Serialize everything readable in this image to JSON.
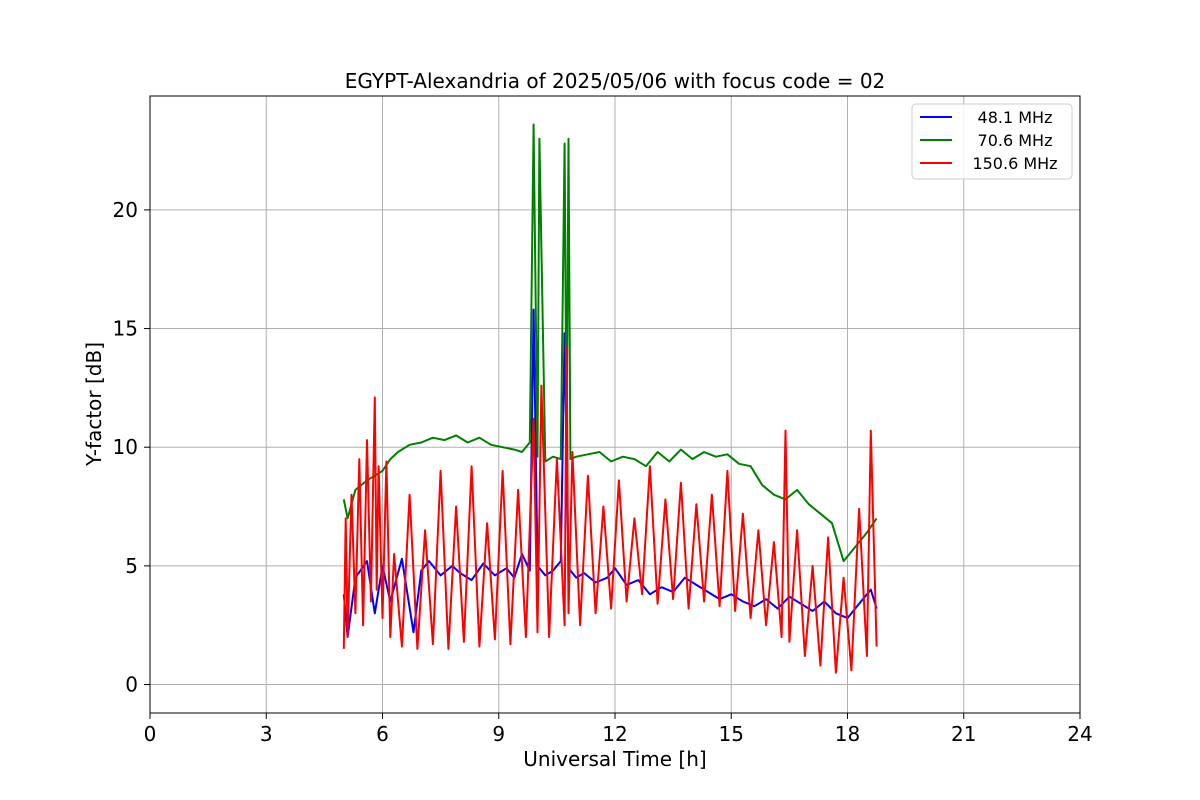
{
  "chart_data": {
    "type": "line",
    "title": "EGYPT-Alexandria of 2025/05/06 with focus code = 02",
    "xlabel": "Universal Time [h]",
    "ylabel": "Y-factor [dB]",
    "xlim": [
      0,
      24
    ],
    "ylim": [
      -1.2,
      24.8
    ],
    "xticks": [
      0,
      3,
      6,
      9,
      12,
      15,
      18,
      21,
      24
    ],
    "yticks": [
      0,
      5,
      10,
      15,
      20
    ],
    "grid": true,
    "legend_position": "top-right",
    "series": [
      {
        "name": "48.1 MHz",
        "color": "#0000ff",
        "x": [
          5.0,
          5.1,
          5.3,
          5.6,
          5.8,
          6.0,
          6.2,
          6.5,
          6.8,
          7.0,
          7.2,
          7.5,
          7.8,
          8.0,
          8.3,
          8.6,
          8.9,
          9.2,
          9.4,
          9.6,
          9.8,
          9.9,
          10.0,
          10.2,
          10.4,
          10.6,
          10.7,
          10.8,
          11.0,
          11.2,
          11.5,
          11.8,
          12.0,
          12.3,
          12.6,
          12.9,
          13.2,
          13.5,
          13.8,
          14.1,
          14.4,
          14.7,
          15.0,
          15.3,
          15.6,
          15.9,
          16.2,
          16.5,
          16.8,
          17.1,
          17.4,
          17.7,
          18.0,
          18.3,
          18.6,
          18.75
        ],
        "y": [
          3.8,
          2.0,
          4.5,
          5.2,
          3.0,
          5.0,
          3.5,
          5.3,
          2.2,
          4.8,
          5.2,
          4.6,
          5.0,
          4.7,
          4.4,
          5.1,
          4.6,
          4.9,
          4.5,
          5.5,
          4.8,
          15.8,
          5.0,
          4.6,
          4.8,
          5.2,
          14.8,
          4.9,
          4.5,
          4.7,
          4.3,
          4.5,
          4.9,
          4.2,
          4.4,
          3.8,
          4.1,
          3.9,
          4.5,
          4.2,
          3.9,
          3.6,
          3.8,
          3.5,
          3.3,
          3.6,
          3.2,
          3.7,
          3.4,
          3.1,
          3.5,
          3.0,
          2.8,
          3.4,
          4.0,
          3.2
        ]
      },
      {
        "name": "70.6 MHz",
        "color": "#008000",
        "x": [
          5.0,
          5.1,
          5.3,
          5.6,
          5.8,
          6.0,
          6.2,
          6.4,
          6.7,
          7.0,
          7.3,
          7.6,
          7.9,
          8.2,
          8.5,
          8.8,
          9.1,
          9.4,
          9.6,
          9.8,
          9.9,
          10.0,
          10.05,
          10.2,
          10.4,
          10.6,
          10.7,
          10.75,
          10.8,
          10.85,
          11.0,
          11.3,
          11.6,
          11.9,
          12.2,
          12.5,
          12.8,
          13.1,
          13.4,
          13.7,
          14.0,
          14.3,
          14.6,
          14.9,
          15.2,
          15.5,
          15.8,
          16.1,
          16.4,
          16.7,
          17.0,
          17.3,
          17.6,
          17.9,
          18.2,
          18.5,
          18.75
        ],
        "y": [
          7.8,
          7.0,
          8.2,
          8.6,
          8.8,
          9.0,
          9.5,
          9.8,
          10.1,
          10.2,
          10.4,
          10.3,
          10.5,
          10.2,
          10.4,
          10.1,
          10.0,
          9.9,
          9.8,
          10.2,
          23.6,
          9.6,
          23.0,
          9.4,
          9.6,
          9.5,
          22.8,
          9.7,
          23.0,
          9.5,
          9.6,
          9.7,
          9.8,
          9.4,
          9.6,
          9.5,
          9.2,
          9.8,
          9.4,
          9.9,
          9.5,
          9.8,
          9.6,
          9.7,
          9.3,
          9.2,
          8.4,
          8.0,
          7.8,
          8.2,
          7.6,
          7.2,
          6.8,
          5.2,
          5.8,
          6.4,
          7.0
        ]
      },
      {
        "name": "150.6 MHz",
        "color": "#ff0000",
        "x": [
          5.0,
          5.05,
          5.1,
          5.2,
          5.3,
          5.4,
          5.5,
          5.6,
          5.7,
          5.8,
          5.85,
          5.9,
          6.0,
          6.1,
          6.2,
          6.3,
          6.5,
          6.7,
          6.9,
          7.1,
          7.3,
          7.5,
          7.7,
          7.9,
          8.1,
          8.3,
          8.5,
          8.7,
          8.9,
          9.1,
          9.3,
          9.5,
          9.7,
          9.9,
          10.0,
          10.1,
          10.3,
          10.5,
          10.7,
          10.75,
          10.8,
          10.9,
          11.1,
          11.3,
          11.5,
          11.7,
          11.9,
          12.1,
          12.3,
          12.5,
          12.7,
          12.9,
          13.1,
          13.3,
          13.5,
          13.7,
          13.9,
          14.1,
          14.3,
          14.5,
          14.7,
          14.9,
          15.1,
          15.3,
          15.5,
          15.7,
          15.9,
          16.1,
          16.3,
          16.4,
          16.5,
          16.7,
          16.9,
          17.1,
          17.3,
          17.5,
          17.7,
          17.9,
          18.1,
          18.3,
          18.5,
          18.6,
          18.75
        ],
        "y": [
          1.5,
          7.0,
          2.0,
          8.0,
          3.0,
          9.5,
          2.5,
          10.3,
          3.5,
          12.1,
          4.0,
          9.2,
          2.8,
          9.4,
          2.0,
          5.5,
          1.6,
          8.0,
          1.5,
          6.5,
          1.7,
          9.0,
          1.5,
          7.5,
          1.8,
          9.2,
          1.6,
          6.8,
          1.9,
          9.0,
          1.7,
          8.2,
          2.0,
          11.2,
          2.2,
          12.6,
          2.0,
          9.5,
          2.5,
          14.2,
          3.0,
          9.8,
          2.5,
          8.8,
          3.0,
          7.5,
          3.2,
          8.6,
          3.5,
          7.0,
          3.8,
          9.2,
          3.4,
          7.8,
          3.6,
          8.5,
          3.2,
          7.6,
          3.5,
          8.0,
          3.3,
          9.0,
          3.1,
          7.2,
          2.8,
          6.5,
          2.5,
          6.0,
          2.0,
          10.7,
          1.8,
          6.5,
          1.2,
          5.0,
          0.8,
          6.2,
          0.5,
          4.5,
          0.6,
          7.4,
          1.2,
          10.7,
          1.6
        ]
      }
    ]
  }
}
